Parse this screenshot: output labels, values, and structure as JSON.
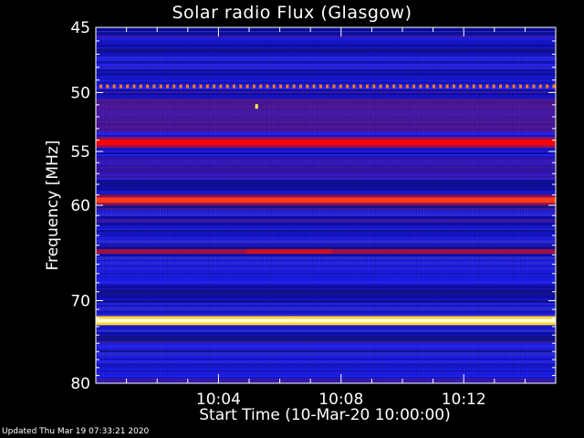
{
  "chart_data": {
    "type": "heatmap",
    "title": "Solar radio Flux (Glasgow)",
    "ylabel": "Frequency [MHz]",
    "xlabel": "Start Time (10-Mar-20 10:00:00)",
    "y_ticks": [
      45,
      50,
      55,
      60,
      70,
      80
    ],
    "x_ticks": [
      "10:04",
      "10:08",
      "10:12"
    ],
    "x_range_minutes": [
      0,
      15
    ],
    "y_range_mhz": [
      45,
      80
    ],
    "y_scale": "log",
    "grid": false,
    "colormap": "blue-red-yellow-white",
    "emission_bands": [
      {
        "freq_mhz": 49.5,
        "intensity": "dotted",
        "color": "#ff7a10"
      },
      {
        "freq_mhz": 54.2,
        "intensity": "strong",
        "color": "#ff0000"
      },
      {
        "freq_mhz": 59.5,
        "intensity": "strong",
        "color": "#ff3a1a"
      },
      {
        "freq_mhz": 64.6,
        "intensity": "medium",
        "color": "#a01040"
      },
      {
        "freq_mhz": 72.3,
        "intensity": "saturated",
        "color": "#ffffcc"
      }
    ],
    "colors": {
      "background_band": "#1a1adc",
      "deep_band": "#0a0a90",
      "purple_band": "#5a1896",
      "red": "#ff0000",
      "yellow": "#ffff40",
      "white": "#ffffff"
    }
  },
  "footer": "Updated Thu Mar 19 07:33:21 2020"
}
